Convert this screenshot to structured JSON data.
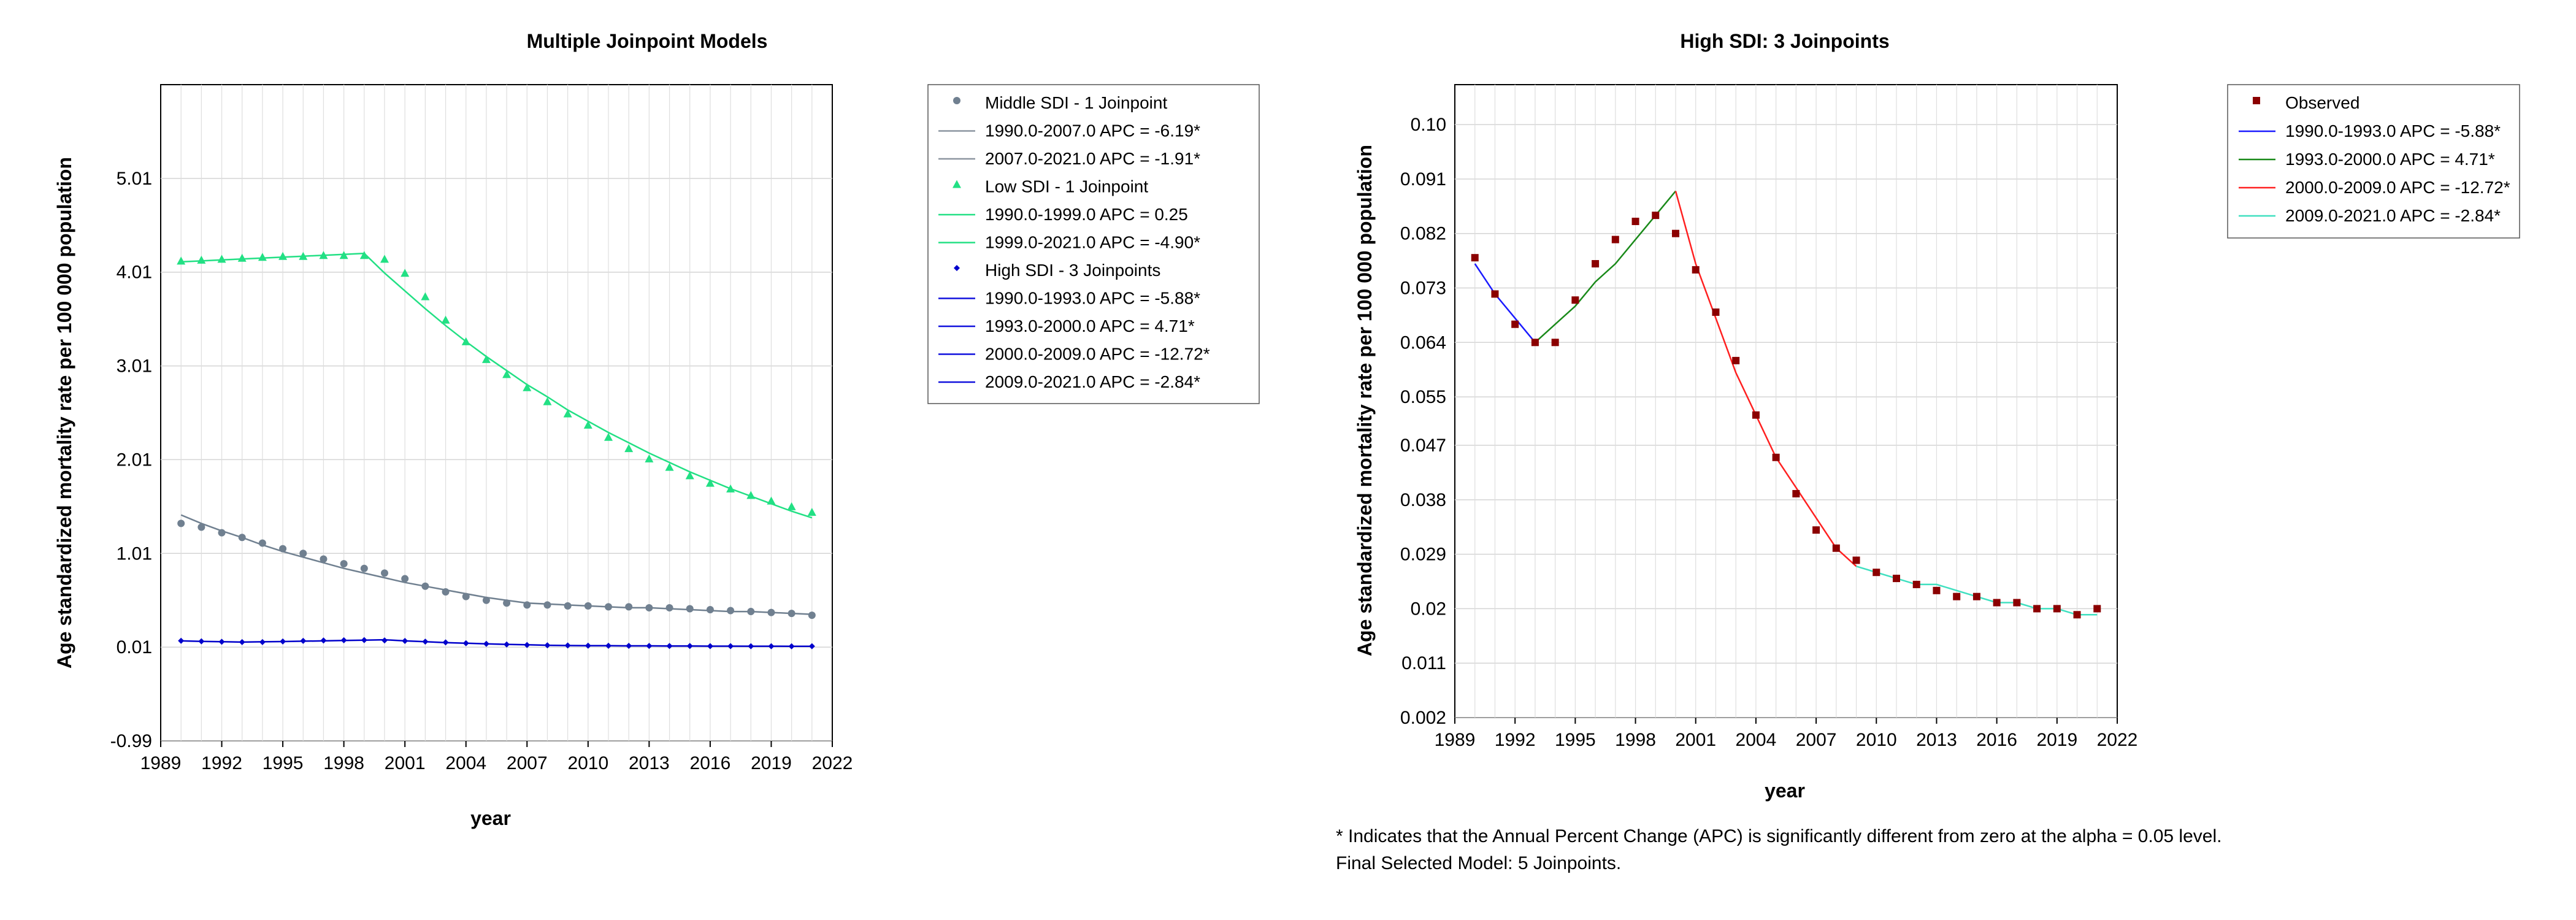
{
  "charts": [
    {
      "id": "left",
      "title": "Multiple Joinpoint Models",
      "xlabel": "year",
      "ylabel": "Age standardized mortality rate per 100 000 population",
      "x_ticks": [
        "1989",
        "1992",
        "1995",
        "1998",
        "2001",
        "2004",
        "2007",
        "2010",
        "2013",
        "2016",
        "2019",
        "2022"
      ],
      "y_ticks": [
        "5.01",
        "4.01",
        "3.01",
        "2.01",
        "1.01",
        "0.01",
        "-0.99"
      ],
      "legend": [
        {
          "kind": "marker",
          "marker": "circle",
          "color": "#708090",
          "label": "Middle SDI - 1 Joinpoint"
        },
        {
          "kind": "line",
          "color": "#8c95a0",
          "label": "1990.0-2007.0 APC  =  -6.19*"
        },
        {
          "kind": "line",
          "color": "#8c95a0",
          "label": "2007.0-2021.0 APC  =  -1.91*"
        },
        {
          "kind": "marker",
          "marker": "triangle",
          "color": "#22e084",
          "label": "Low SDI - 1 Joinpoint"
        },
        {
          "kind": "line",
          "color": "#22e084",
          "label": "1990.0-1999.0 APC  =  0.25"
        },
        {
          "kind": "line",
          "color": "#22e084",
          "label": "1999.0-2021.0 APC  =  -4.90*"
        },
        {
          "kind": "marker",
          "marker": "diamond",
          "color": "#0000cc",
          "label": "High SDI - 3 Joinpoints"
        },
        {
          "kind": "line",
          "color": "#1010dd",
          "label": "1990.0-1993.0 APC  =  -5.88*"
        },
        {
          "kind": "line",
          "color": "#1010dd",
          "label": "1993.0-2000.0 APC  =   4.71*"
        },
        {
          "kind": "line",
          "color": "#1010dd",
          "label": "2000.0-2009.0 APC  =  -12.72*"
        },
        {
          "kind": "line",
          "color": "#1010dd",
          "label": "2009.0-2021.0 APC  =  -2.84*"
        }
      ]
    },
    {
      "id": "right",
      "title": "High SDI: 3 Joinpoints",
      "xlabel": "year",
      "ylabel": "Age standardized mortality rate per 100 000 population",
      "x_ticks": [
        "1989",
        "1992",
        "1995",
        "1998",
        "2001",
        "2004",
        "2007",
        "2010",
        "2013",
        "2016",
        "2019",
        "2022"
      ],
      "y_ticks": [
        "0.10",
        "0.091",
        "0.082",
        "0.073",
        "0.064",
        "0.055",
        "0.047",
        "0.038",
        "0.029",
        "0.02",
        "0.011",
        "0.002"
      ],
      "legend": [
        {
          "kind": "marker",
          "marker": "square",
          "color": "#8b0000",
          "label": "Observed"
        },
        {
          "kind": "line",
          "color": "#1a1aff",
          "label": "1990.0-1993.0 APC  =  -5.88*"
        },
        {
          "kind": "line",
          "color": "#1a8a1a",
          "label": "1993.0-2000.0 APC  =   4.71*"
        },
        {
          "kind": "line",
          "color": "#ff2020",
          "label": "2000.0-2009.0 APC  =  -12.72*"
        },
        {
          "kind": "line",
          "color": "#40e0c0",
          "label": "2009.0-2021.0 APC  =  -2.84*"
        }
      ]
    }
  ],
  "footnote": {
    "line1": "* Indicates that the Annual Percent Change (APC) is significantly different from zero at the alpha = 0.05 level.",
    "line2": "Final Selected Model: 5 Joinpoints."
  },
  "chart_data": [
    {
      "type": "line",
      "title": "Multiple Joinpoint Models",
      "xlabel": "year",
      "ylabel": "Age standardized mortality rate per 100 000 population",
      "xlim": [
        1989,
        2022
      ],
      "ylim": [
        -0.99,
        6.01
      ],
      "grid": true,
      "legend_position": "outside-right",
      "x": [
        1990,
        1991,
        1992,
        1993,
        1994,
        1995,
        1996,
        1997,
        1998,
        1999,
        2000,
        2001,
        2002,
        2003,
        2004,
        2005,
        2006,
        2007,
        2008,
        2009,
        2010,
        2011,
        2012,
        2013,
        2014,
        2015,
        2016,
        2017,
        2018,
        2019,
        2020,
        2021
      ],
      "series": [
        {
          "name": "Middle SDI - 1 Joinpoint",
          "marker": "circle",
          "color": "#708090",
          "observed": [
            1.33,
            1.29,
            1.23,
            1.18,
            1.12,
            1.06,
            1.01,
            0.95,
            0.9,
            0.85,
            0.8,
            0.74,
            0.66,
            0.6,
            0.55,
            0.51,
            0.48,
            0.46,
            0.46,
            0.45,
            0.45,
            0.44,
            0.44,
            0.43,
            0.43,
            0.42,
            0.41,
            0.4,
            0.39,
            0.38,
            0.37,
            0.35
          ],
          "fitted": [
            1.42,
            1.33,
            1.25,
            1.18,
            1.1,
            1.03,
            0.97,
            0.91,
            0.85,
            0.8,
            0.75,
            0.7,
            0.66,
            0.62,
            0.58,
            0.54,
            0.51,
            0.48,
            0.47,
            0.46,
            0.45,
            0.44,
            0.43,
            0.43,
            0.42,
            0.41,
            0.4,
            0.39,
            0.39,
            0.38,
            0.37,
            0.36
          ]
        },
        {
          "name": "Low SDI - 1 Joinpoint",
          "marker": "triangle",
          "color": "#22e084",
          "observed": [
            4.13,
            4.14,
            4.15,
            4.16,
            4.17,
            4.18,
            4.18,
            4.19,
            4.19,
            4.19,
            4.15,
            4.0,
            3.75,
            3.5,
            3.27,
            3.08,
            2.92,
            2.78,
            2.63,
            2.5,
            2.38,
            2.25,
            2.13,
            2.02,
            1.93,
            1.84,
            1.76,
            1.7,
            1.63,
            1.57,
            1.51,
            1.45
          ],
          "fitted": [
            4.12,
            4.13,
            4.14,
            4.15,
            4.16,
            4.17,
            4.18,
            4.19,
            4.2,
            4.21,
            4.0,
            3.81,
            3.62,
            3.44,
            3.27,
            3.11,
            2.96,
            2.81,
            2.68,
            2.54,
            2.42,
            2.3,
            2.19,
            2.08,
            1.98,
            1.88,
            1.79,
            1.7,
            1.62,
            1.54,
            1.46,
            1.39
          ]
        },
        {
          "name": "High SDI - 3 Joinpoints",
          "marker": "diamond",
          "color": "#0000cc",
          "observed": [
            0.078,
            0.072,
            0.067,
            0.064,
            0.064,
            0.071,
            0.077,
            0.081,
            0.084,
            0.085,
            0.082,
            0.076,
            0.069,
            0.061,
            0.052,
            0.045,
            0.039,
            0.033,
            0.03,
            0.028,
            0.026,
            0.025,
            0.024,
            0.023,
            0.022,
            0.022,
            0.021,
            0.021,
            0.02,
            0.02,
            0.019,
            0.02
          ],
          "fitted": [
            0.077,
            0.072,
            0.068,
            0.064,
            0.067,
            0.07,
            0.074,
            0.077,
            0.081,
            0.085,
            0.089,
            0.077,
            0.068,
            0.059,
            0.052,
            0.045,
            0.04,
            0.035,
            0.03,
            0.027,
            0.026,
            0.025,
            0.024,
            0.024,
            0.023,
            0.022,
            0.021,
            0.021,
            0.02,
            0.02,
            0.019,
            0.019
          ]
        }
      ]
    },
    {
      "type": "line",
      "title": "High SDI: 3 Joinpoints",
      "xlabel": "year",
      "ylabel": "Age standardized mortality rate per 100 000 population",
      "xlim": [
        1989,
        2022
      ],
      "ylim": [
        0.002,
        0.1066
      ],
      "grid": true,
      "legend_position": "outside-right",
      "x": [
        1990,
        1991,
        1992,
        1993,
        1994,
        1995,
        1996,
        1997,
        1998,
        1999,
        2000,
        2001,
        2002,
        2003,
        2004,
        2005,
        2006,
        2007,
        2008,
        2009,
        2010,
        2011,
        2012,
        2013,
        2014,
        2015,
        2016,
        2017,
        2018,
        2019,
        2020,
        2021
      ],
      "observed": {
        "name": "Observed",
        "marker": "square",
        "color": "#8b0000",
        "values": [
          0.078,
          0.072,
          0.067,
          0.064,
          0.064,
          0.071,
          0.077,
          0.081,
          0.084,
          0.085,
          0.082,
          0.076,
          0.069,
          0.061,
          0.052,
          0.045,
          0.039,
          0.033,
          0.03,
          0.028,
          0.026,
          0.025,
          0.024,
          0.023,
          0.022,
          0.022,
          0.021,
          0.021,
          0.02,
          0.02,
          0.019,
          0.02
        ]
      },
      "segments": [
        {
          "name": "1990.0-1993.0 APC  =  -5.88*",
          "color": "#1a1aff",
          "x": [
            1990,
            1991,
            1992,
            1993
          ],
          "y": [
            0.077,
            0.072,
            0.068,
            0.064
          ]
        },
        {
          "name": "1993.0-2000.0 APC  =   4.71*",
          "color": "#1a8a1a",
          "x": [
            1993,
            1994,
            1995,
            1996,
            1997,
            1998,
            1999,
            2000
          ],
          "y": [
            0.064,
            0.067,
            0.07,
            0.074,
            0.077,
            0.081,
            0.085,
            0.089
          ]
        },
        {
          "name": "2000.0-2009.0 APC  =  -12.72*",
          "color": "#ff2020",
          "x": [
            2000,
            2001,
            2002,
            2003,
            2004,
            2005,
            2006,
            2007,
            2008,
            2009
          ],
          "y": [
            0.089,
            0.077,
            0.068,
            0.059,
            0.052,
            0.045,
            0.04,
            0.035,
            0.03,
            0.027
          ]
        },
        {
          "name": "2009.0-2021.0 APC  =  -2.84*",
          "color": "#40e0c0",
          "x": [
            2009,
            2010,
            2011,
            2012,
            2013,
            2014,
            2015,
            2016,
            2017,
            2018,
            2019,
            2020,
            2021
          ],
          "y": [
            0.027,
            0.026,
            0.025,
            0.024,
            0.024,
            0.023,
            0.022,
            0.021,
            0.021,
            0.02,
            0.02,
            0.019,
            0.019
          ]
        }
      ]
    }
  ]
}
